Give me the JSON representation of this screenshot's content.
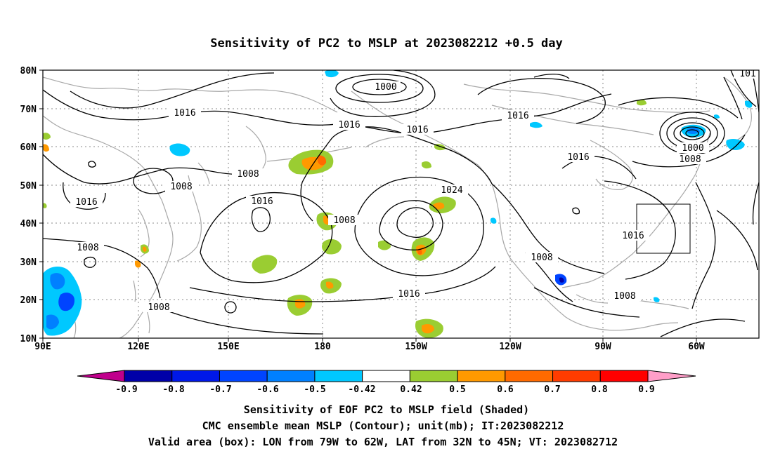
{
  "title": "Sensitivity of PC2 to MSLP at 2023082212 +0.5 day",
  "map": {
    "lat_labels": [
      "80N",
      "70N",
      "60N",
      "50N",
      "40N",
      "30N",
      "20N",
      "10N"
    ],
    "lon_labels": [
      "90E",
      "120E",
      "150E",
      "180",
      "150W",
      "120W",
      "90W",
      "60W"
    ],
    "isobar_labels": [
      {
        "text": "1000"
      },
      {
        "text": "1016"
      },
      {
        "text": "1016"
      },
      {
        "text": "1016"
      },
      {
        "text": "1016"
      },
      {
        "text": "1016"
      },
      {
        "text": "1008"
      },
      {
        "text": "1008"
      },
      {
        "text": "1008"
      },
      {
        "text": "1016"
      },
      {
        "text": "1024"
      },
      {
        "text": "1008"
      },
      {
        "text": "1000"
      },
      {
        "text": "1008"
      },
      {
        "text": "1016"
      },
      {
        "text": "1008"
      },
      {
        "text": "1016"
      },
      {
        "text": "1008"
      },
      {
        "text": "1008"
      },
      {
        "text": "101"
      }
    ],
    "valid_box": {
      "lon_min": -79,
      "lon_max": -62,
      "lat_min": 32,
      "lat_max": 45
    },
    "colors": {
      "contour": "#000000",
      "coast": "#a8a8a8",
      "grid": "#8a8a8a",
      "green": "#9acd32",
      "orange": "#ff9900",
      "dark_orange": "#ff6a00",
      "light_blue": "#00c8ff",
      "blue": "#2060ff"
    }
  },
  "colorbar": {
    "ticks": [
      "-0.9",
      "-0.8",
      "-0.7",
      "-0.6",
      "-0.5",
      "-0.42",
      "0.42",
      "0.5",
      "0.6",
      "0.7",
      "0.8",
      "0.9"
    ],
    "colors": [
      "#c0008c",
      "#0000a8",
      "#0018e8",
      "#0044ff",
      "#0080ff",
      "#00c8ff",
      "#ffffff",
      "#9acd32",
      "#ff9900",
      "#ff6a00",
      "#ff3c00",
      "#ff0000",
      "#ff9ec8"
    ]
  },
  "captions": [
    "Sensitivity of EOF PC2 to MSLP field (Shaded)",
    "CMC ensemble mean MSLP (Contour); unit(mb); IT:2023082212",
    "Valid area (box): LON from 79W to 62W, LAT from 32N to 45N; VT: 2023082712"
  ]
}
